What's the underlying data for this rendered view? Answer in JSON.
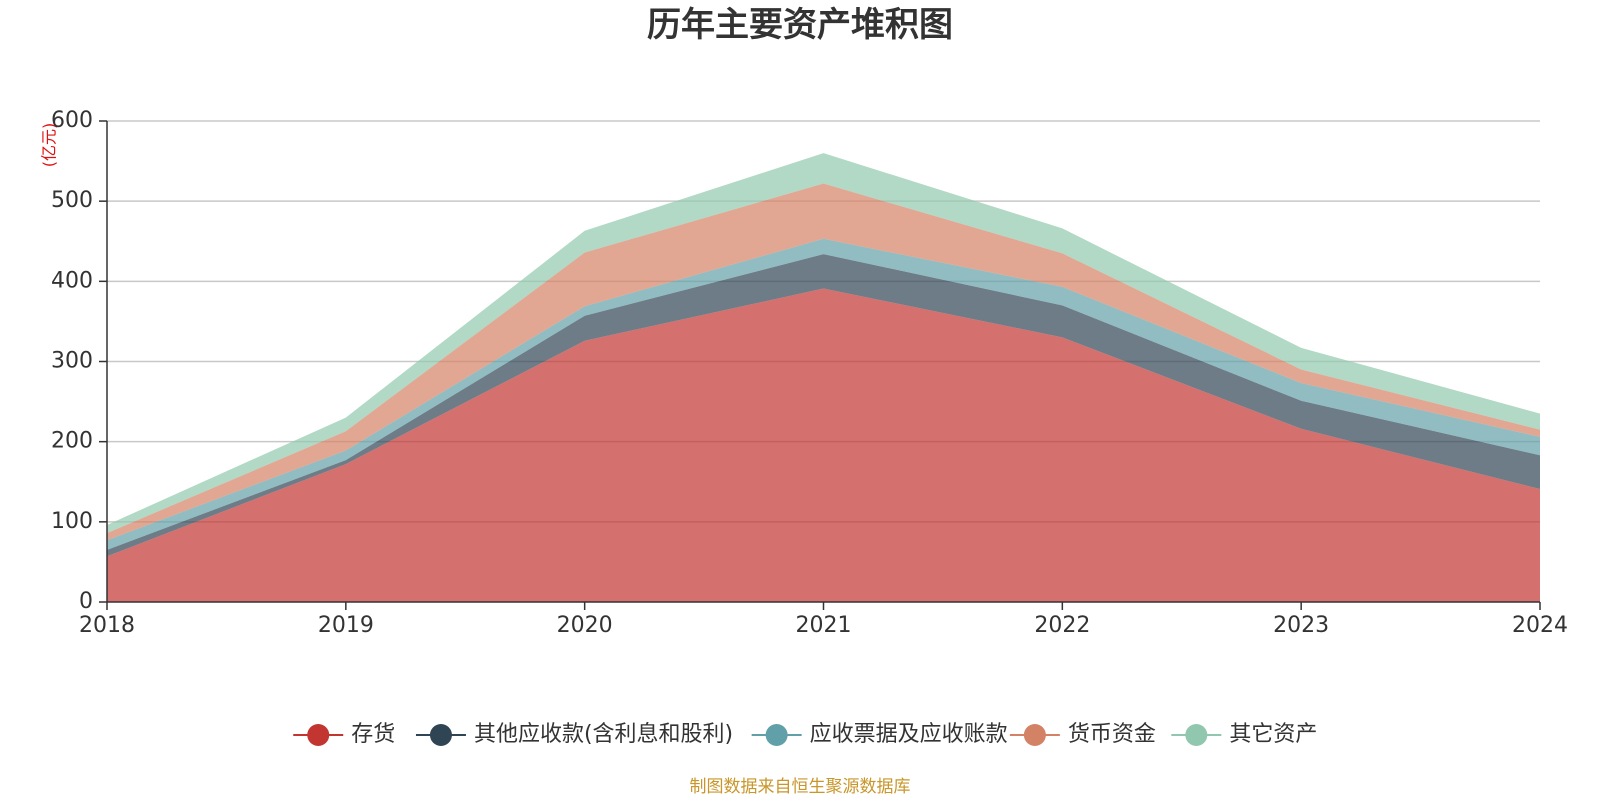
{
  "chart_data": {
    "type": "area",
    "stacked": true,
    "title": "历年主要资产堆积图",
    "y_unit_label": "(亿元)",
    "categories": [
      "2018",
      "2019",
      "2020",
      "2021",
      "2022",
      "2023",
      "2024"
    ],
    "ylim": [
      0,
      600
    ],
    "yticks": [
      0,
      100,
      200,
      300,
      400,
      500,
      600
    ],
    "grid": true,
    "legend_position": "bottom",
    "series": [
      {
        "name": "存货",
        "color": "#c23531",
        "values": [
          57,
          172,
          326,
          391,
          330,
          216,
          141
        ]
      },
      {
        "name": "其他应收款(含利息和股利)",
        "color": "#2f4554",
        "values": [
          8,
          5,
          31,
          43,
          40,
          35,
          42
        ]
      },
      {
        "name": "应收票据及应收账款",
        "color": "#61a0a8",
        "values": [
          12,
          12,
          12,
          19,
          23,
          22,
          23
        ]
      },
      {
        "name": "货币资金",
        "color": "#d48265",
        "values": [
          9,
          24,
          67,
          69,
          42,
          17,
          9
        ]
      },
      {
        "name": "其它资产",
        "color": "#91c7ae",
        "values": [
          10,
          17,
          27,
          38,
          31,
          27,
          20
        ]
      }
    ]
  },
  "footer": {
    "source": "制图数据来自恒生聚源数据库"
  }
}
